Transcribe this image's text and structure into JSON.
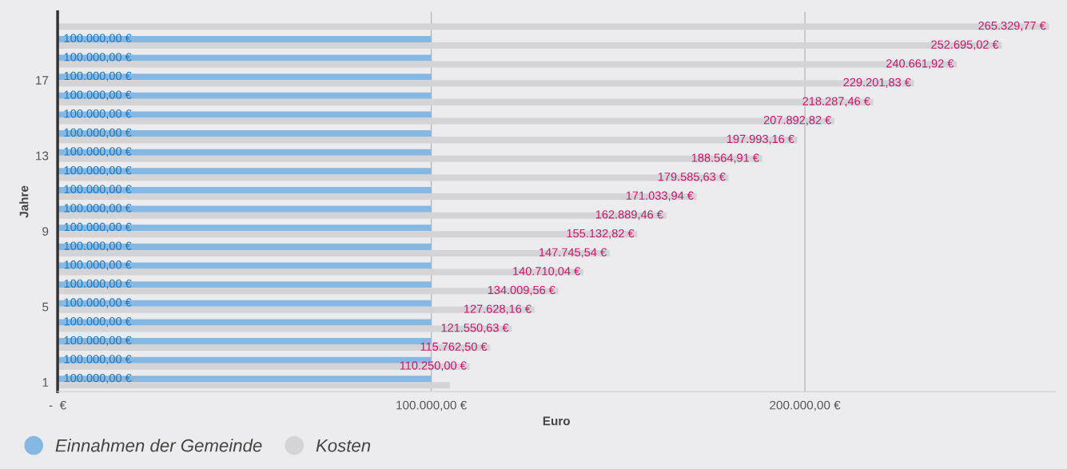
{
  "chart_data": {
    "type": "bar",
    "orientation": "horizontal",
    "xlabel": "Euro",
    "ylabel": "Jahre",
    "categories": [
      null,
      null,
      null,
      "17",
      null,
      null,
      null,
      "13",
      null,
      null,
      null,
      "9",
      null,
      null,
      null,
      "5",
      null,
      null,
      null,
      "1"
    ],
    "xlim": [
      0,
      267000
    ],
    "xticks": [
      {
        "value": 0,
        "label": "-  €"
      },
      {
        "value": 100000,
        "label": "100.000,00 €"
      },
      {
        "value": 200000,
        "label": "200.000,00 €"
      }
    ],
    "grid": "x",
    "legend": "bottom left",
    "series": [
      {
        "name": "Einnahmen der Gemeinde",
        "color": "#85b8e3",
        "values": [
          null,
          100000,
          100000,
          100000,
          100000,
          100000,
          100000,
          100000,
          100000,
          100000,
          100000,
          100000,
          100000,
          100000,
          100000,
          100000,
          100000,
          100000,
          100000,
          100000
        ],
        "value_labels": [
          null,
          "100.000,00 €",
          "100.000,00 €",
          "100.000,00 €",
          "100.000,00 €",
          "100.000,00 €",
          "100.000,00 €",
          "100.000,00 €",
          "100.000,00 €",
          "100.000,00 €",
          "100.000,00 €",
          "100.000,00 €",
          "100.000,00 €",
          "100.000,00 €",
          "100.000,00 €",
          "100.000,00 €",
          "100.000,00 €",
          "100.000,00 €",
          "100.000,00 €",
          "100.000,00 €"
        ]
      },
      {
        "name": "Kosten",
        "color": "#d4d4d7",
        "values": [
          265329.77,
          252695.02,
          240661.92,
          229201.83,
          218287.46,
          207892.82,
          197993.16,
          188564.91,
          179585.63,
          171033.94,
          162889.46,
          155132.82,
          147745.54,
          140710.04,
          134009.56,
          127628.16,
          121550.63,
          115762.5,
          110250.0,
          105000
        ],
        "value_labels": [
          "265.329,77 €",
          "252.695,02 €",
          "240.661,92 €",
          "229.201,83 €",
          "218.287,46 €",
          "207.892,82 €",
          "197.993,16 €",
          "188.564,91 €",
          "179.585,63 €",
          "171.033,94 €",
          "162.889,46 €",
          "155.132,82 €",
          "147.745,54 €",
          "140.710,04 €",
          "134.009,56 €",
          "127.628,16 €",
          "121.550,63 €",
          "115.762,50 €",
          "110.250,00 €",
          null
        ]
      }
    ]
  }
}
